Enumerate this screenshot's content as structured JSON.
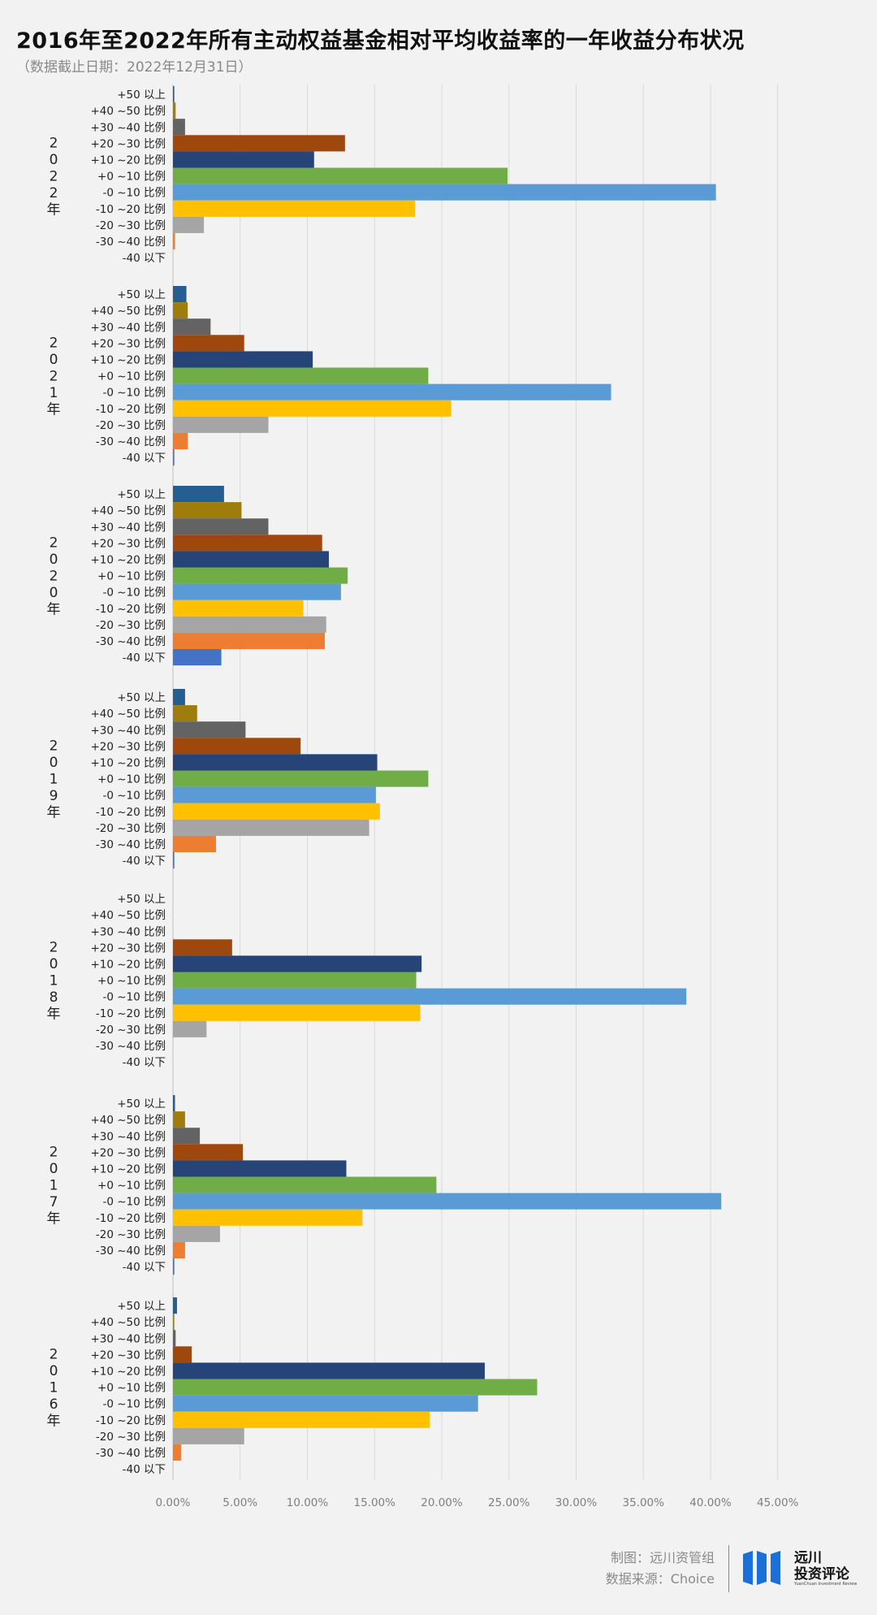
{
  "title": "2016年至2022年所有主动权益基金相对平均收益率的一年收益分布状况",
  "subtitle": "（数据截止日期：2022年12月31日）",
  "footer": {
    "credit_line1": "制图：远川资管组",
    "credit_line2": "数据来源：Choice",
    "logo_name_line1": "远川",
    "logo_name_line2": "投资评论",
    "logo_english": "YuanChuan Investment Review"
  },
  "colors": {
    "+50 以上": "#255e91",
    "+40 ~50 比例": "#9e7d0c",
    "+30 ~40 比例": "#636363",
    "+20 ~30 比例": "#9e480e",
    "+10 ~20 比例": "#264478",
    "+0 ~10 比例": "#70ad47",
    "-0 ~10 比例": "#5b9bd5",
    "-10 ~20 比例": "#ffc000",
    "-20 ~30 比例": "#a5a5a5",
    "-30 ~40 比例": "#ed7d31",
    "-40 以下": "#4472c4"
  },
  "chart_data": {
    "type": "bar",
    "orientation": "horizontal",
    "categories": [
      "+50 以上",
      "+40 ~50 比例",
      "+30 ~40 比例",
      "+20 ~30 比例",
      "+10 ~20 比例",
      "+0 ~10 比例",
      "-0 ~10 比例",
      "-10 ~20 比例",
      "-20 ~30 比例",
      "-30 ~40 比例",
      "-40 以下"
    ],
    "x_ticks": [
      "0.00%",
      "5.00%",
      "10.00%",
      "15.00%",
      "20.00%",
      "25.00%",
      "30.00%",
      "35.00%",
      "40.00%",
      "45.00%"
    ],
    "xlim": [
      0,
      45
    ],
    "grid": true,
    "groups": [
      {
        "label": "2022年",
        "values": [
          0.1,
          0.2,
          0.9,
          12.8,
          10.5,
          24.9,
          40.4,
          18.0,
          2.3,
          0.15,
          0
        ]
      },
      {
        "label": "2021年",
        "values": [
          1.0,
          1.1,
          2.8,
          5.3,
          10.4,
          19.0,
          32.6,
          20.7,
          7.1,
          1.1,
          0.1
        ]
      },
      {
        "label": "2020年",
        "values": [
          3.8,
          5.1,
          7.1,
          11.1,
          11.6,
          13.0,
          12.5,
          9.7,
          11.4,
          11.3,
          3.6
        ]
      },
      {
        "label": "2019年",
        "values": [
          0.9,
          1.8,
          5.4,
          9.5,
          15.2,
          19.0,
          15.1,
          15.4,
          14.6,
          3.2,
          0.1
        ]
      },
      {
        "label": "2018年",
        "values": [
          0,
          0,
          0,
          4.4,
          18.5,
          18.1,
          38.2,
          18.4,
          2.5,
          0,
          0
        ]
      },
      {
        "label": "2017年",
        "values": [
          0.15,
          0.9,
          2.0,
          5.2,
          12.9,
          19.6,
          40.8,
          14.1,
          3.5,
          0.9,
          0.1
        ]
      },
      {
        "label": "2016年",
        "values": [
          0.3,
          0.1,
          0.2,
          1.4,
          23.2,
          27.1,
          22.7,
          19.1,
          5.3,
          0.6,
          0
        ]
      }
    ]
  }
}
